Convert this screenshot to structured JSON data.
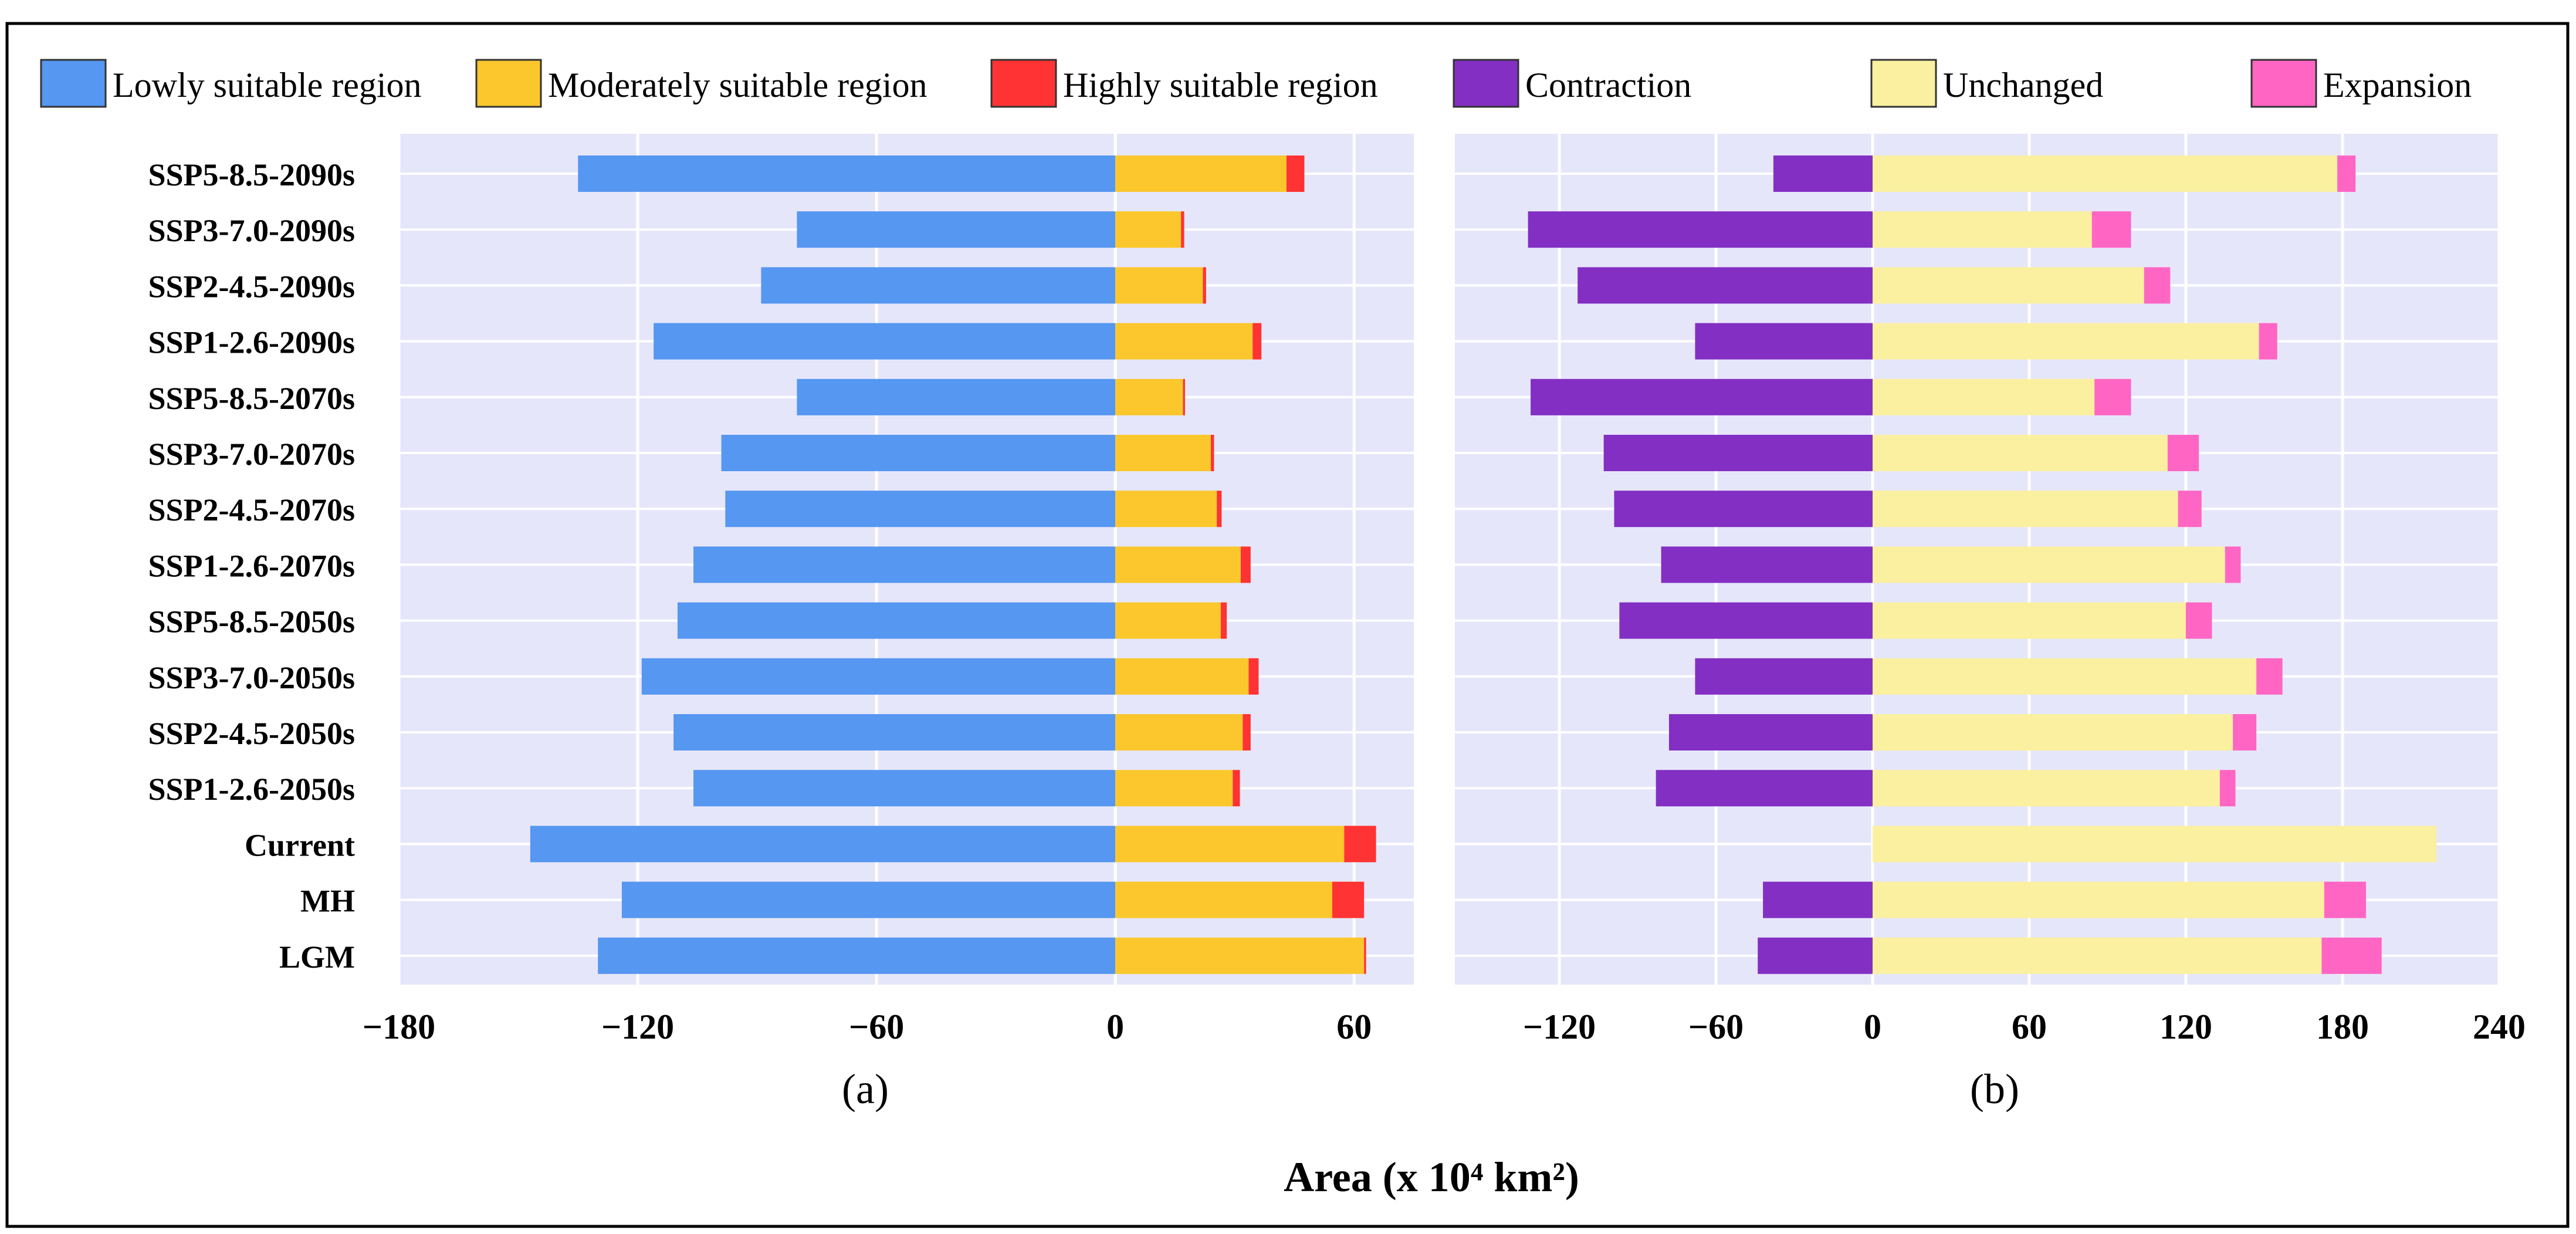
{
  "legend": {
    "items": [
      {
        "label": "Lowly suitable region",
        "color": "#5597f1"
      },
      {
        "label": "Moderately suitable region",
        "color": "#fbc72c"
      },
      {
        "label": "Highly suitable region",
        "color": "#ff3333"
      },
      {
        "label": "Contraction",
        "color": "#832fc3"
      },
      {
        "label": "Unchanged",
        "color": "#fbf0a0"
      },
      {
        "label": "Expansion",
        "color": "#ff66c4"
      }
    ]
  },
  "xlabel": "Area (x 10⁴ km²)",
  "panel_a_label": "(a)",
  "panel_b_label": "(b)",
  "chart_data": [
    {
      "type": "bar",
      "orientation": "horizontal",
      "stacked": true,
      "panel": "(a)",
      "categories": [
        "SSP5-8.5-2090s",
        "SSP3-7.0-2090s",
        "SSP2-4.5-2090s",
        "SSP1-2.6-2090s",
        "SSP5-8.5-2070s",
        "SSP3-7.0-2070s",
        "SSP2-4.5-2070s",
        "SSP1-2.6-2070s",
        "SSP5-8.5-2050s",
        "SSP3-7.0-2050s",
        "SSP2-4.5-2050s",
        "SSP1-2.6-2050s",
        "Current",
        "MH",
        "LGM"
      ],
      "series": [
        {
          "name": "Lowly suitable region",
          "color": "#5597f1",
          "values": [
            -135,
            -80,
            -89,
            -116,
            -80,
            -99,
            -98,
            -106,
            -110,
            -119,
            -111,
            -106,
            -147,
            -124,
            -130
          ]
        },
        {
          "name": "Moderately suitable region",
          "color": "#fbc72c",
          "values": [
            43,
            16.5,
            22,
            34.5,
            17,
            24,
            25.5,
            31.5,
            26.5,
            33.5,
            32,
            29.5,
            57.5,
            54.5,
            62.5
          ]
        },
        {
          "name": "Highly suitable region",
          "color": "#ff3333",
          "values": [
            4.5,
            0.8,
            0.8,
            2.2,
            0.5,
            0.8,
            1.2,
            2.5,
            1.5,
            2.5,
            2.0,
            1.8,
            8.0,
            8.0,
            0.5
          ]
        }
      ],
      "xlim": [
        -180,
        75
      ],
      "xticks": [
        "−180",
        "−120",
        "−60",
        "0",
        "60"
      ],
      "xtick_values": [
        -180,
        -120,
        -60,
        0,
        60
      ],
      "grid": true
    },
    {
      "type": "bar",
      "orientation": "horizontal",
      "stacked": true,
      "panel": "(b)",
      "categories": [
        "SSP5-8.5-2090s",
        "SSP3-7.0-2090s",
        "SSP2-4.5-2090s",
        "SSP1-2.6-2090s",
        "SSP5-8.5-2070s",
        "SSP3-7.0-2070s",
        "SSP2-4.5-2070s",
        "SSP1-2.6-2070s",
        "SSP5-8.5-2050s",
        "SSP3-7.0-2050s",
        "SSP2-4.5-2050s",
        "SSP1-2.6-2050s",
        "Current",
        "MH",
        "LGM"
      ],
      "series": [
        {
          "name": "Contraction",
          "color": "#832fc3",
          "values": [
            -38,
            -132,
            -113,
            -68,
            -131,
            -103,
            -99,
            -81,
            -97,
            -68,
            -78,
            -83,
            0,
            -42,
            -44
          ]
        },
        {
          "name": "Unchanged",
          "color": "#fbf0a0",
          "values": [
            178,
            84,
            104,
            148,
            85,
            113,
            117,
            135,
            120,
            147,
            138,
            133,
            216,
            173,
            172
          ]
        },
        {
          "name": "Expansion",
          "color": "#ff66c4",
          "values": [
            7,
            15,
            10,
            7,
            14,
            12,
            9,
            6,
            10,
            10,
            9,
            6,
            0,
            16,
            23
          ]
        }
      ],
      "xlim": [
        -160,
        240
      ],
      "xticks": [
        "−120",
        "−60",
        "0",
        "60",
        "120",
        "180",
        "240"
      ],
      "xtick_values": [
        -120,
        -60,
        0,
        60,
        120,
        180,
        240
      ],
      "grid": true
    }
  ]
}
